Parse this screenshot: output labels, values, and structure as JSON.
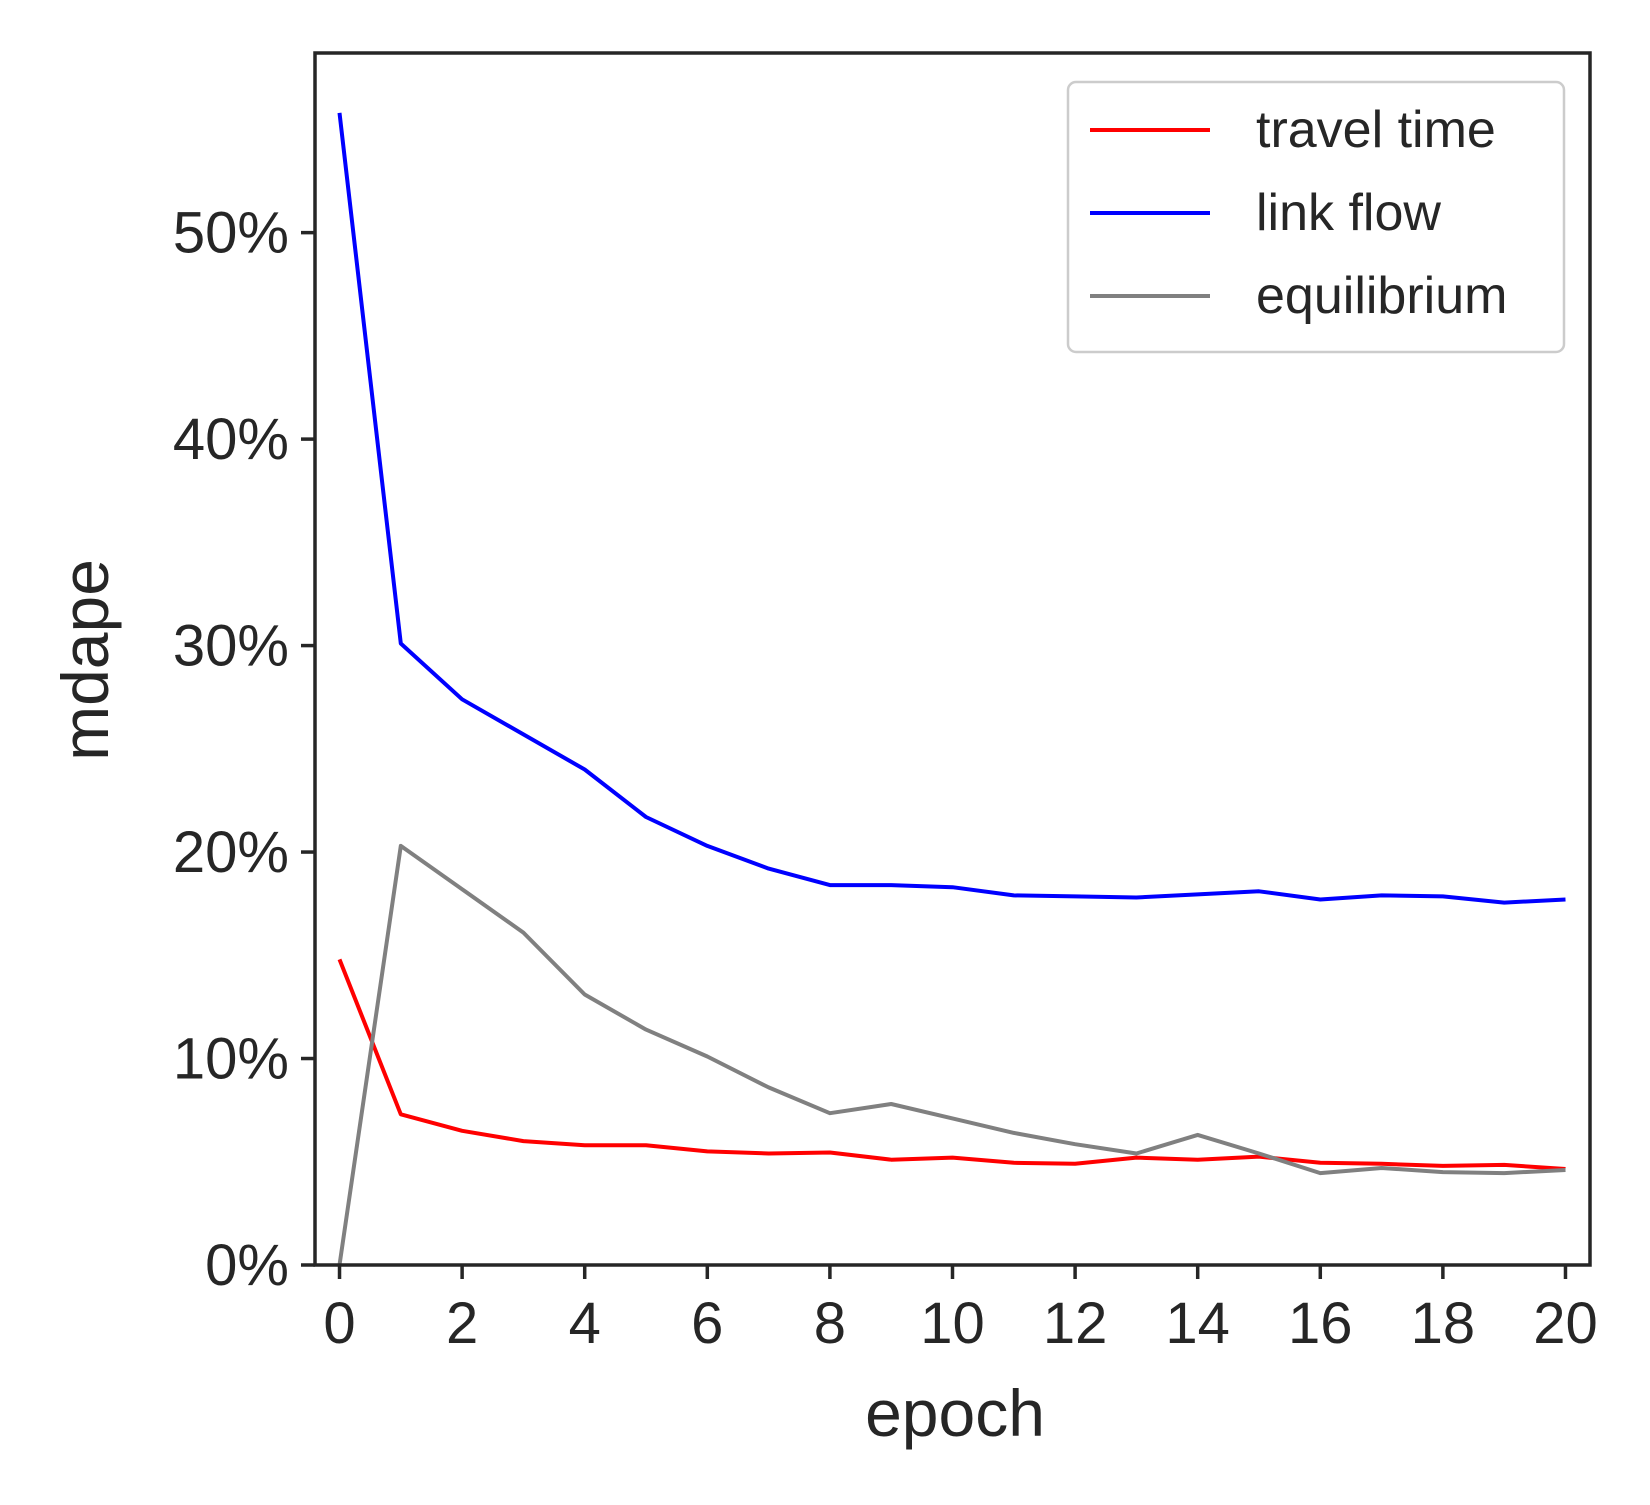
{
  "chart_data": {
    "type": "line",
    "xlabel": "epoch",
    "ylabel": "mdape",
    "xlim": [
      -0.4,
      20.4
    ],
    "ylim": [
      0,
      58.7
    ],
    "x_ticks": [
      0,
      2,
      4,
      6,
      8,
      10,
      12,
      14,
      16,
      18,
      20
    ],
    "x_tick_labels": [
      "0",
      "2",
      "4",
      "6",
      "8",
      "10",
      "12",
      "14",
      "16",
      "18",
      "20"
    ],
    "y_ticks": [
      0,
      10,
      20,
      30,
      40,
      50
    ],
    "y_tick_labels": [
      "0%",
      "10%",
      "20%",
      "30%",
      "40%",
      "50%"
    ],
    "grid": false,
    "legend_position": "top-right",
    "x": [
      0,
      1,
      2,
      3,
      4,
      5,
      6,
      7,
      8,
      9,
      10,
      11,
      12,
      13,
      14,
      15,
      16,
      17,
      18,
      19,
      20
    ],
    "series": [
      {
        "name": "travel time",
        "color": "#ff0000",
        "values": [
          14.8,
          7.3,
          6.5,
          6.0,
          5.8,
          5.8,
          5.5,
          5.4,
          5.45,
          5.1,
          5.2,
          4.95,
          4.9,
          5.2,
          5.1,
          5.25,
          4.95,
          4.9,
          4.8,
          4.85,
          4.65
        ]
      },
      {
        "name": "link flow",
        "color": "#0000ff",
        "values": [
          55.8,
          30.1,
          27.4,
          25.7,
          24.0,
          21.7,
          20.3,
          19.2,
          18.4,
          18.4,
          18.3,
          17.9,
          17.85,
          17.8,
          17.95,
          18.1,
          17.7,
          17.9,
          17.85,
          17.55,
          17.7
        ]
      },
      {
        "name": "equilibrium",
        "color": "#808080",
        "values": [
          0.0,
          20.3,
          18.2,
          16.1,
          13.1,
          11.4,
          10.1,
          8.6,
          7.35,
          7.8,
          7.1,
          6.4,
          5.85,
          5.4,
          6.3,
          5.4,
          4.45,
          4.7,
          4.5,
          4.45,
          4.6
        ]
      }
    ]
  }
}
